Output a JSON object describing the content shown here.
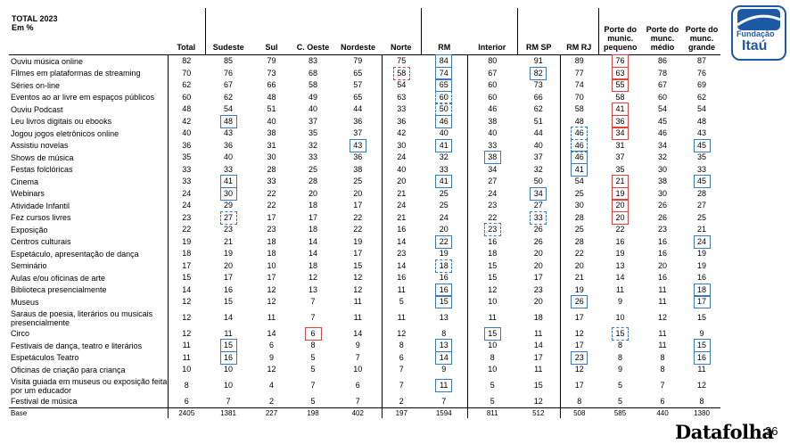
{
  "header": {
    "title": "TOTAL 2023",
    "subtitle": "Em %",
    "columns": [
      "Total",
      "Sudeste",
      "Sul",
      "C. Oeste",
      "Nordeste",
      "Norte",
      "RM",
      "Interior",
      "RM SP",
      "RM RJ",
      "Porte do munic. pequeno",
      "Porte do munc. médio",
      "Porte do munc. grande"
    ]
  },
  "rows": [
    {
      "label": "Ouviu música online",
      "values": [
        "82",
        "85",
        "79",
        "83",
        "79",
        "75",
        "84",
        "80",
        "91",
        "89",
        "76",
        "86",
        "87"
      ]
    },
    {
      "label": "Filmes em plataformas de streaming",
      "values": [
        "70",
        "76",
        "73",
        "68",
        "65",
        "58",
        "74",
        "67",
        "82",
        "77",
        "63",
        "78",
        "76"
      ]
    },
    {
      "label": "Séries on-line",
      "values": [
        "62",
        "67",
        "66",
        "58",
        "57",
        "54",
        "65",
        "60",
        "73",
        "74",
        "55",
        "67",
        "69"
      ]
    },
    {
      "label": "Eventos ao ar livre em espaços públicos",
      "values": [
        "60",
        "62",
        "48",
        "49",
        "65",
        "63",
        "60",
        "60",
        "66",
        "70",
        "58",
        "60",
        "62"
      ]
    },
    {
      "label": "Ouviu Podcast",
      "values": [
        "48",
        "54",
        "51",
        "40",
        "44",
        "33",
        "50",
        "46",
        "62",
        "58",
        "41",
        "54",
        "54"
      ]
    },
    {
      "label": "Leu livros digitais ou ebooks",
      "values": [
        "42",
        "48",
        "40",
        "37",
        "36",
        "36",
        "46",
        "38",
        "51",
        "48",
        "36",
        "45",
        "48"
      ]
    },
    {
      "label": "Jogou jogos eletrônicos online",
      "values": [
        "40",
        "43",
        "38",
        "35",
        "37",
        "42",
        "40",
        "40",
        "44",
        "46",
        "34",
        "46",
        "43"
      ]
    },
    {
      "label": "Assistiu novelas",
      "values": [
        "36",
        "36",
        "31",
        "32",
        "43",
        "30",
        "41",
        "33",
        "40",
        "46",
        "31",
        "34",
        "45"
      ]
    },
    {
      "label": "Shows de música",
      "values": [
        "35",
        "40",
        "30",
        "33",
        "36",
        "24",
        "32",
        "38",
        "37",
        "46",
        "37",
        "32",
        "35"
      ]
    },
    {
      "label": "Festas folclóricas",
      "values": [
        "33",
        "33",
        "28",
        "25",
        "38",
        "40",
        "33",
        "34",
        "32",
        "41",
        "35",
        "30",
        "33"
      ]
    },
    {
      "label": "Cinema",
      "values": [
        "33",
        "41",
        "33",
        "28",
        "25",
        "20",
        "41",
        "27",
        "50",
        "54",
        "21",
        "38",
        "45"
      ]
    },
    {
      "label": "Webinars",
      "values": [
        "24",
        "30",
        "22",
        "20",
        "20",
        "21",
        "25",
        "24",
        "34",
        "25",
        "19",
        "30",
        "28"
      ]
    },
    {
      "label": "Atividade Infantil",
      "values": [
        "24",
        "29",
        "22",
        "18",
        "17",
        "24",
        "25",
        "23",
        "27",
        "30",
        "20",
        "26",
        "27"
      ]
    },
    {
      "label": "Fez cursos livres",
      "values": [
        "23",
        "27",
        "17",
        "17",
        "22",
        "21",
        "24",
        "22",
        "33",
        "28",
        "20",
        "26",
        "25"
      ]
    },
    {
      "label": "Exposição",
      "values": [
        "22",
        "23",
        "23",
        "18",
        "22",
        "16",
        "20",
        "23",
        "26",
        "25",
        "22",
        "23",
        "21"
      ]
    },
    {
      "label": "Centros culturais",
      "values": [
        "19",
        "21",
        "18",
        "14",
        "19",
        "14",
        "22",
        "16",
        "26",
        "28",
        "16",
        "16",
        "24"
      ]
    },
    {
      "label": "Espetáculo, apresentação de dança",
      "values": [
        "18",
        "19",
        "18",
        "14",
        "17",
        "23",
        "19",
        "18",
        "20",
        "22",
        "19",
        "16",
        "19"
      ]
    },
    {
      "label": "Seminário",
      "values": [
        "17",
        "20",
        "10",
        "18",
        "15",
        "14",
        "18",
        "15",
        "20",
        "20",
        "13",
        "20",
        "19"
      ]
    },
    {
      "label": "Aulas e/ou oficinas de arte",
      "values": [
        "15",
        "17",
        "17",
        "12",
        "12",
        "16",
        "16",
        "15",
        "17",
        "21",
        "14",
        "16",
        "16"
      ]
    },
    {
      "label": "Biblioteca presencialmente",
      "values": [
        "14",
        "16",
        "12",
        "13",
        "12",
        "11",
        "16",
        "12",
        "23",
        "19",
        "11",
        "11",
        "18"
      ]
    },
    {
      "label": "Museus",
      "values": [
        "12",
        "15",
        "12",
        "7",
        "11",
        "5",
        "15",
        "10",
        "20",
        "26",
        "9",
        "11",
        "17"
      ]
    },
    {
      "label": "Saraus de poesia, literários ou musicais presencialmente",
      "values": [
        "12",
        "14",
        "11",
        "7",
        "11",
        "11",
        "13",
        "11",
        "18",
        "17",
        "10",
        "12",
        "15"
      ]
    },
    {
      "label": "Circo",
      "values": [
        "12",
        "11",
        "14",
        "6",
        "14",
        "12",
        "8",
        "15",
        "11",
        "12",
        "15",
        "11",
        "9"
      ]
    },
    {
      "label": "Festivais de dança, teatro e literários",
      "values": [
        "11",
        "15",
        "6",
        "8",
        "9",
        "8",
        "13",
        "10",
        "14",
        "17",
        "8",
        "11",
        "15"
      ]
    },
    {
      "label": "Espetáculos Teatro",
      "values": [
        "11",
        "16",
        "9",
        "5",
        "7",
        "6",
        "14",
        "8",
        "17",
        "23",
        "8",
        "8",
        "16"
      ]
    },
    {
      "label": "Oficinas de criação para criança",
      "values": [
        "10",
        "10",
        "12",
        "5",
        "10",
        "7",
        "9",
        "10",
        "11",
        "12",
        "9",
        "8",
        "11"
      ]
    },
    {
      "label": "Visita guiada em museus ou exposição feita por um educador",
      "values": [
        "8",
        "10",
        "4",
        "7",
        "6",
        "7",
        "11",
        "5",
        "15",
        "17",
        "5",
        "7",
        "12"
      ]
    },
    {
      "label": "Festival de música",
      "values": [
        "6",
        "7",
        "2",
        "5",
        "7",
        "2",
        "7",
        "5",
        "12",
        "8",
        "5",
        "6",
        "8"
      ]
    }
  ],
  "base": {
    "label": "Base",
    "values": [
      "2405",
      "1381",
      "227",
      "198",
      "402",
      "197",
      "1594",
      "811",
      "512",
      "508",
      "585",
      "440",
      "1380"
    ]
  },
  "highlights": [
    {
      "row": 0,
      "col": 6,
      "style": "solid-blue"
    },
    {
      "row": 0,
      "col": 10,
      "style": "solid-red"
    },
    {
      "row": 1,
      "col": 5,
      "style": "dash-red"
    },
    {
      "row": 1,
      "col": 6,
      "style": "solid-blue"
    },
    {
      "row": 1,
      "col": 8,
      "style": "solid-blue"
    },
    {
      "row": 1,
      "col": 10,
      "style": "solid-red"
    },
    {
      "row": 2,
      "col": 6,
      "style": "solid-blue"
    },
    {
      "row": 2,
      "col": 10,
      "style": "solid-red"
    },
    {
      "row": 3,
      "col": 6,
      "style": "dash-blue"
    },
    {
      "row": 4,
      "col": 6,
      "style": "dash-blue"
    },
    {
      "row": 4,
      "col": 10,
      "style": "solid-red"
    },
    {
      "row": 5,
      "col": 1,
      "style": "solid-blue"
    },
    {
      "row": 5,
      "col": 6,
      "style": "solid-blue"
    },
    {
      "row": 5,
      "col": 10,
      "style": "solid-red"
    },
    {
      "row": 6,
      "col": 9,
      "style": "dash-blue"
    },
    {
      "row": 6,
      "col": 10,
      "style": "solid-red"
    },
    {
      "row": 7,
      "col": 4,
      "style": "solid-blue"
    },
    {
      "row": 7,
      "col": 6,
      "style": "solid-blue"
    },
    {
      "row": 7,
      "col": 9,
      "style": "dash-blue"
    },
    {
      "row": 7,
      "col": 12,
      "style": "solid-blue"
    },
    {
      "row": 8,
      "col": 7,
      "style": "solid-blue"
    },
    {
      "row": 8,
      "col": 9,
      "style": "solid-blue"
    },
    {
      "row": 9,
      "col": 9,
      "style": "solid-blue"
    },
    {
      "row": 10,
      "col": 1,
      "style": "solid-blue"
    },
    {
      "row": 10,
      "col": 6,
      "style": "solid-blue"
    },
    {
      "row": 10,
      "col": 10,
      "style": "solid-red"
    },
    {
      "row": 10,
      "col": 12,
      "style": "solid-blue"
    },
    {
      "row": 11,
      "col": 1,
      "style": "solid-blue"
    },
    {
      "row": 11,
      "col": 8,
      "style": "solid-blue"
    },
    {
      "row": 11,
      "col": 10,
      "style": "solid-red"
    },
    {
      "row": 12,
      "col": 10,
      "style": "solid-red"
    },
    {
      "row": 13,
      "col": 1,
      "style": "dash-blue"
    },
    {
      "row": 13,
      "col": 8,
      "style": "dash-blue"
    },
    {
      "row": 13,
      "col": 10,
      "style": "solid-red"
    },
    {
      "row": 14,
      "col": 7,
      "style": "dash-blue"
    },
    {
      "row": 15,
      "col": 6,
      "style": "solid-blue"
    },
    {
      "row": 15,
      "col": 12,
      "style": "solid-blue"
    },
    {
      "row": 17,
      "col": 6,
      "style": "dash-blue"
    },
    {
      "row": 19,
      "col": 6,
      "style": "solid-blue"
    },
    {
      "row": 19,
      "col": 12,
      "style": "solid-blue"
    },
    {
      "row": 20,
      "col": 6,
      "style": "solid-blue"
    },
    {
      "row": 20,
      "col": 9,
      "style": "solid-blue"
    },
    {
      "row": 20,
      "col": 12,
      "style": "solid-blue"
    },
    {
      "row": 22,
      "col": 3,
      "style": "solid-red"
    },
    {
      "row": 22,
      "col": 7,
      "style": "solid-blue"
    },
    {
      "row": 22,
      "col": 10,
      "style": "dash-blue"
    },
    {
      "row": 23,
      "col": 1,
      "style": "solid-blue"
    },
    {
      "row": 23,
      "col": 6,
      "style": "solid-blue"
    },
    {
      "row": 23,
      "col": 12,
      "style": "solid-blue"
    },
    {
      "row": 24,
      "col": 1,
      "style": "solid-blue"
    },
    {
      "row": 24,
      "col": 6,
      "style": "solid-blue"
    },
    {
      "row": 24,
      "col": 9,
      "style": "solid-blue"
    },
    {
      "row": 24,
      "col": 12,
      "style": "solid-blue"
    },
    {
      "row": 26,
      "col": 6,
      "style": "solid-blue"
    }
  ],
  "logo": {
    "line1": "Fundação",
    "line2": "Itaú",
    "color": "#1d5aa6"
  },
  "footer": {
    "brand": "Datafolha",
    "page": "36"
  }
}
